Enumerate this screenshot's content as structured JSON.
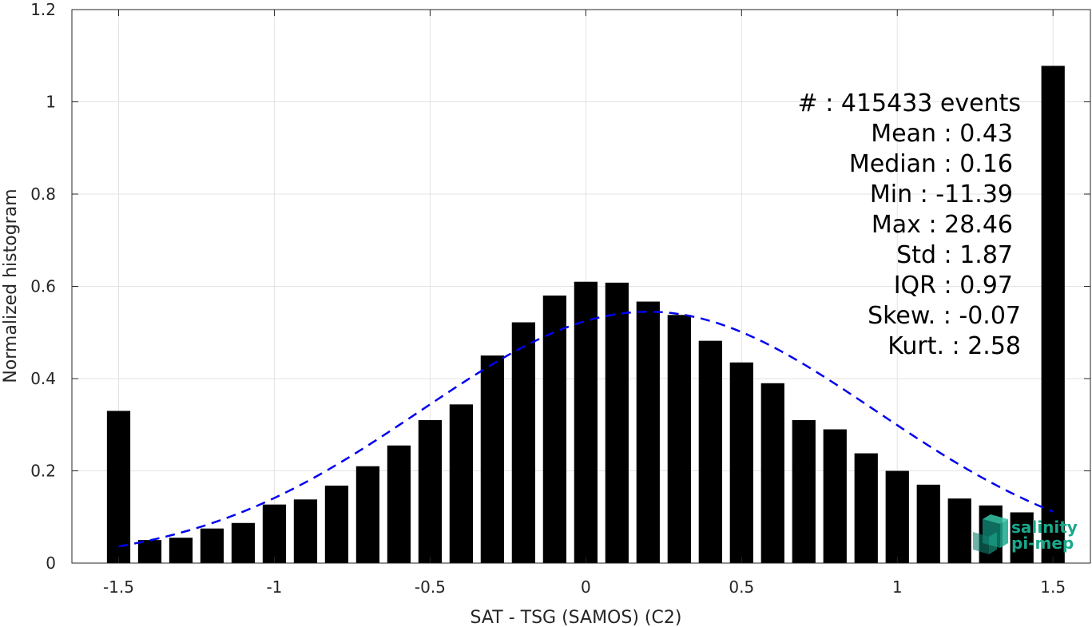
{
  "chart_data": {
    "type": "bar",
    "title": "",
    "xlabel": "SAT - TSG (SAMOS) (C2)",
    "ylabel": "Normalized histogram",
    "xlim": [
      -1.65,
      1.62
    ],
    "ylim": [
      0,
      1.2
    ],
    "grid": true,
    "bar_width": 0.075,
    "x": [
      -1.5,
      -1.4,
      -1.3,
      -1.2,
      -1.1,
      -1.0,
      -0.9,
      -0.8,
      -0.7,
      -0.6,
      -0.5,
      -0.4,
      -0.3,
      -0.2,
      -0.1,
      0.0,
      0.1,
      0.2,
      0.3,
      0.4,
      0.5,
      0.6,
      0.7,
      0.8,
      0.9,
      1.0,
      1.1,
      1.2,
      1.3,
      1.4,
      1.5
    ],
    "values": [
      0.33,
      0.05,
      0.055,
      0.075,
      0.087,
      0.127,
      0.138,
      0.168,
      0.21,
      0.255,
      0.31,
      0.344,
      0.45,
      0.522,
      0.58,
      0.61,
      0.608,
      0.567,
      0.538,
      0.482,
      0.435,
      0.39,
      0.31,
      0.29,
      0.238,
      0.2,
      0.17,
      0.14,
      0.125,
      0.11,
      1.078
    ],
    "fit": {
      "type": "normal",
      "mean": 0.2,
      "std": 0.73,
      "peak": 0.545,
      "x_range": [
        -1.5,
        1.5
      ]
    },
    "x_ticks": [
      -1.5,
      -1.0,
      -0.5,
      0,
      0.5,
      1.0,
      1.5
    ],
    "x_tick_labels": [
      "-1.5",
      "-1",
      "-0.5",
      "0",
      "0.5",
      "1",
      "1.5"
    ],
    "y_ticks": [
      0,
      0.2,
      0.4,
      0.6,
      0.8,
      1.0,
      1.2
    ],
    "y_tick_labels": [
      "0",
      "0.2",
      "0.4",
      "0.6",
      "0.8",
      "1",
      "1.2"
    ],
    "bar_color": "#000000",
    "fit_color": "#0000ee",
    "stats": [
      "#  : 415433 events",
      "Mean : 0.43",
      "Median : 0.16",
      "Min : -11.39",
      "Max : 28.46",
      "Std : 1.87",
      "IQR : 0.97",
      "Skew. : -0.07",
      "Kurt. : 2.58"
    ]
  },
  "logo": {
    "line1": "salinity",
    "line2": "pi-mep",
    "text_color": "#1aa88c",
    "cube_color": "#0f7f6e"
  }
}
